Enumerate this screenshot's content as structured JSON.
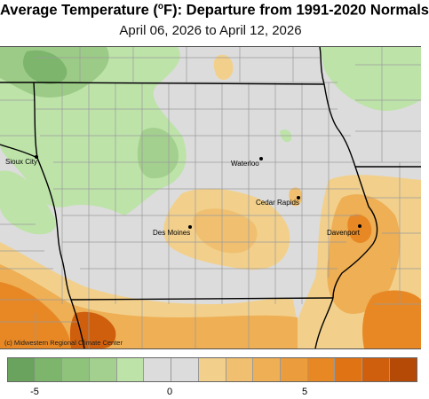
{
  "title": {
    "prefix": "Average Temperature (",
    "degree": "o",
    "suffix": "F): Departure from 1991-2020 Normals"
  },
  "subtitle": "April 06, 2026 to April 12, 2026",
  "credit": "(c) Midwestern Regional Climate Center",
  "cities": [
    {
      "name": "Sioux City"
    },
    {
      "name": "Waterloo"
    },
    {
      "name": "Cedar Rapids"
    },
    {
      "name": "Des Moines"
    },
    {
      "name": "Davenport"
    }
  ],
  "legend": {
    "colors": [
      "#6aa35e",
      "#7db56d",
      "#8fc37c",
      "#a3d08e",
      "#bde3a9",
      "#dcdcdc",
      "#dcdcdc",
      "#f2d08c",
      "#f0c070",
      "#eeaf55",
      "#eb9c3c",
      "#e78824",
      "#e07313",
      "#cf5f0c",
      "#b54a06"
    ],
    "ticks": [
      {
        "label": "-5"
      },
      {
        "label": "0"
      },
      {
        "label": "5"
      }
    ]
  },
  "colors": {
    "neutral": "#dcdcdc",
    "green_light": "#bde3a9",
    "green_mid": "#9ccb87",
    "green_dark": "#7db56d",
    "orange_light": "#f2d08c",
    "orange_mid": "#eeaf55",
    "orange_dark": "#e78824",
    "orange_deep": "#cf5f0c",
    "state_line": "#000000",
    "county_line": "#9a9a9a"
  }
}
